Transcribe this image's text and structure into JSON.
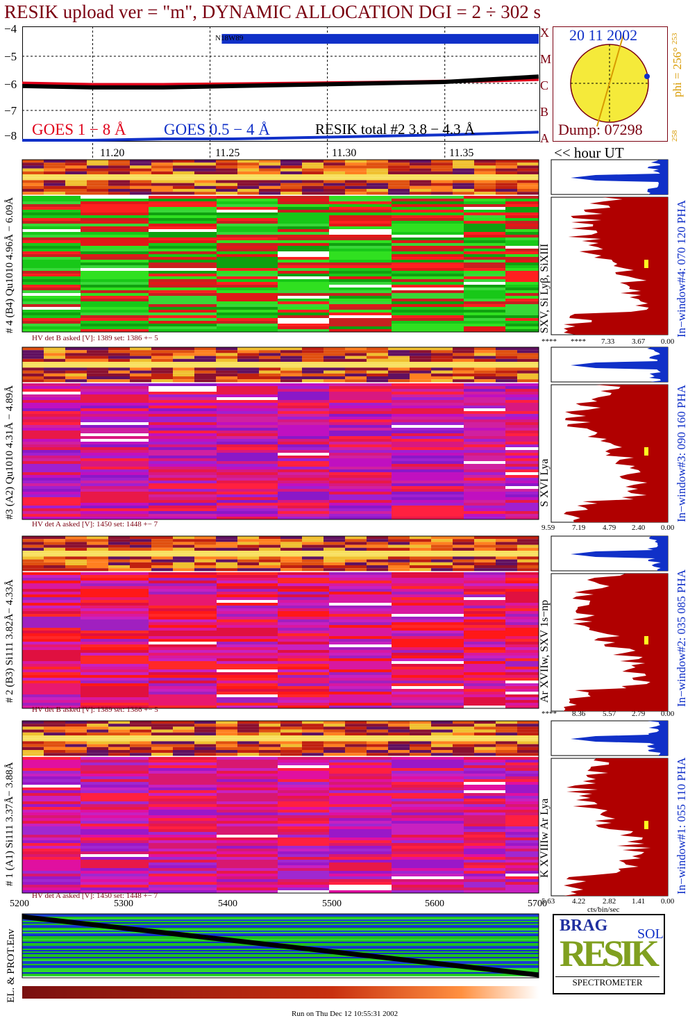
{
  "title": "RESIK upload ver = \"m\", DYNAMIC ALLOCATION  DGI =   2 ÷ 302 s",
  "goes_panel": {
    "y_ticks": [
      "−4",
      "−5",
      "−6",
      "−7",
      "−8"
    ],
    "class_letters": [
      "X",
      "M",
      "C",
      "B",
      "A"
    ],
    "region_label": "N18W89",
    "legend_goes_long": "GOES 1 − 8 Å",
    "legend_goes_short": "GOES 0.5 − 4 Å",
    "legend_resik": "RESIK total #2  3.8 − 4.3 Å",
    "time_ticks": [
      "11.20",
      "11.25",
      "11.30",
      "11.35"
    ],
    "hour_label": "<< hour UT",
    "colors": {
      "goes_long": "#e0001a",
      "goes_short": "#1030c8",
      "resik": "#000000"
    }
  },
  "sun": {
    "date": "20 11 2002",
    "phi": "phi = 256°",
    "phi_small": "253",
    "bottom_small": "258",
    "dump": "Dump: 07298"
  },
  "channels": [
    {
      "label": "# 4 (B4) Qu1010 4.96Å − 6.09Å",
      "lines": "SXV, Si Lyβ, SiXIII",
      "window": "In−window#4:  070 120 PHA",
      "hv": "HV det B asked [V]:  1389 set:  1386 +−    5",
      "x_ticks": [
        "****",
        "****",
        "7.33",
        "3.67",
        "0.00"
      ],
      "palette": "green"
    },
    {
      "label": "#3 (A2) Qu1010  4.31Å  − 4.89Å",
      "lines": "S XVI Lya",
      "window": "In−window#3:  090 160 PHA",
      "hv": "HV det A asked [V]:  1450 set:  1448 +−    7",
      "x_ticks": [
        "9.59",
        "7.19",
        "4.79",
        "2.40",
        "0.00"
      ],
      "palette": "magenta"
    },
    {
      "label": "# 2 (B3) Si111  3.82Å− 4.33Å",
      "lines": "Ar XVIIw,  SXV  1s−np",
      "window": "In−window#2:  035 085 PHA",
      "hv": "HV det B asked [V]:  1389 set:  1386 +−    5",
      "x_ticks": [
        "****",
        "8.36",
        "5.57",
        "2.79",
        "0.00"
      ],
      "palette": "red"
    },
    {
      "label": "# 1 (A1) Si111  3.37Å−  3.88Å",
      "lines": "K XVIIIw  Ar Lya",
      "window": "In−window#1:  055 110 PHA",
      "hv": "HV det A asked [V]:  1450 set:  1448 +−    7",
      "x_ticks": [
        "5.63",
        "4.22",
        "2.82",
        "1.41",
        "0.00"
      ],
      "palette": "magenta2"
    }
  ],
  "hist_unit": "cts/bin/sec",
  "env_panel": {
    "label": "EL. & PROT.Env",
    "x_ticks": [
      "5200",
      "5300",
      "5400",
      "5500",
      "5600",
      "5700"
    ]
  },
  "logo": {
    "top_text": "BRAG",
    "main_text": "RESIK",
    "side_text": "SOLAR",
    "bottom_text": "SPECTROMETER"
  },
  "footer": "Run on Thu Dec 12 10:55:31 2002",
  "chart_data": {
    "type": "line",
    "title": "RESIK upload ver = \"m\", DYNAMIC ALLOCATION  DGI =   2 ÷ 302 s",
    "xlabel": "hour UT",
    "ylabel": "",
    "xlim": [
      11.17,
      11.39
    ],
    "ylim": [
      -8.1,
      -3.9
    ],
    "x_ticks": [
      11.2,
      11.25,
      11.3,
      11.35
    ],
    "x": [
      11.17,
      11.2,
      11.23,
      11.26,
      11.29,
      11.32,
      11.35,
      11.37,
      11.39
    ],
    "series": [
      {
        "name": "GOES 1 − 8 Å",
        "values": [
          -6.0,
          -6.05,
          -6.05,
          -6.03,
          -6.0,
          -5.97,
          -5.93,
          -5.9,
          -5.85
        ]
      },
      {
        "name": "GOES 0.5 − 4 Å",
        "values": [
          -8.1,
          -8.1,
          -8.05,
          -8.05,
          -8.0,
          -7.95,
          -7.9,
          -7.85,
          -7.8
        ]
      },
      {
        "name": "RESIK total #2  3.8 − 4.3 Å",
        "values": [
          -6.1,
          -6.15,
          -6.15,
          -6.1,
          -6.05,
          -6.0,
          -5.95,
          -5.85,
          -5.75
        ]
      }
    ]
  }
}
